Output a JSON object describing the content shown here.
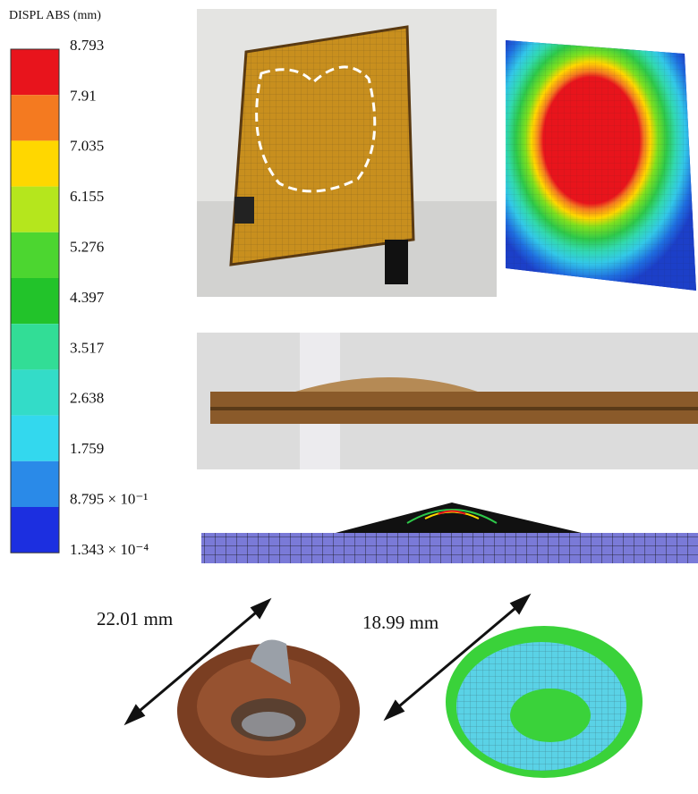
{
  "legend": {
    "title": "DISPL ABS (mm)",
    "labels": [
      "8.793",
      "7.91",
      "7.035",
      "6.155",
      "5.276",
      "4.397",
      "3.517",
      "2.638",
      "1.759",
      "8.795 × 10⁻¹",
      "1.343 × 10⁻⁴"
    ]
  },
  "measurements": {
    "experiment": "22.01 mm",
    "simulation": "18.99 mm"
  }
}
